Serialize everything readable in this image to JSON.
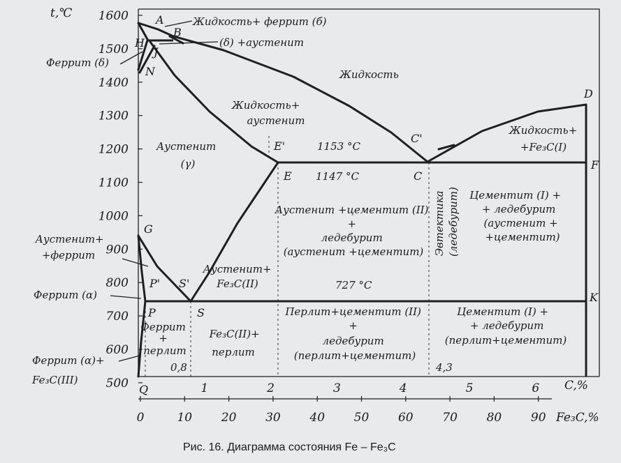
{
  "axes": {
    "y_title": "t,℃",
    "y_ticks": [
      "1600",
      "1500",
      "1400",
      "1300",
      "1200",
      "1100",
      "1000",
      "900",
      "800",
      "700",
      "600",
      "500"
    ],
    "x_ticks_c": [
      "0",
      "1",
      "2",
      "3",
      "4",
      "5",
      "6"
    ],
    "x_c_label": "C,%",
    "x_ticks_fe3c": [
      "0",
      "10",
      "20",
      "30",
      "40",
      "50",
      "60",
      "70",
      "80",
      "90"
    ],
    "x_fe3c_label": "Fe₃C,%"
  },
  "points": {
    "A": "A",
    "B": "B",
    "H": "H",
    "J": "J",
    "N": "N",
    "D": "D",
    "E1": "E'",
    "E": "E",
    "C1": "C'",
    "C": "C",
    "F": "F",
    "G": "G",
    "P1": "P'",
    "S1": "S'",
    "P": "P",
    "S": "S",
    "K": "K",
    "Q": "Q"
  },
  "temps": {
    "t1153": "1153 °C",
    "t1147": "1147 °C",
    "t727": "727 °C"
  },
  "comps": {
    "c08": "0,8",
    "c43": "4,3"
  },
  "regions": {
    "liquid_ferrite": "Жидкость+ феррит (б)",
    "delta_austenite": "(δ) +аустенит",
    "ferrite_delta": "Феррит (δ)",
    "liquid": "Жидкость",
    "liquid_austenite": [
      "Жидкость+",
      "аустенит"
    ],
    "austenite": [
      "Аустенит",
      "(γ)"
    ],
    "liquid_fe3c": [
      "Жидкость+",
      "+Fe₃C(I)"
    ],
    "aust_cem_led": [
      "Аустенит +цементит (II)",
      "+",
      "ледебурит",
      "(аустенит +цементит)"
    ],
    "eutectic": [
      "Эвтектика",
      "(ледебурит)"
    ],
    "cem_led_aust": [
      "Цементит (I) +",
      "+ ледебурит",
      "(аустенит +",
      "+цементит)"
    ],
    "aust_ferrite": [
      "Аустенит+",
      "+феррит"
    ],
    "aust_fe3c": [
      "Аустенит+",
      "Fe₃C(II)"
    ],
    "ferrite_alpha": "Феррит (α)",
    "ferrite_pearlite": [
      "Феррит",
      "+",
      "перлит"
    ],
    "fe3c_pearlite": [
      "Fe₃C(II)+",
      "перлит"
    ],
    "pearlite_cem_led": [
      "Перлит+цементит (II)",
      "+",
      "ледебурит",
      "(перлит+цементит)"
    ],
    "cem_led_pearl": [
      "Цементит (I) +",
      "+ ледебурит",
      "(перлит+цементит)"
    ],
    "ferrite_fe3c3": [
      "Феррит (α)+",
      "Fe₃C(III)"
    ]
  },
  "caption": "Рис. 16. Диаграмма состояния Fe – Fe₃C",
  "colors": {
    "ink": "#1f1f1f",
    "paper": "#e9eaec"
  }
}
